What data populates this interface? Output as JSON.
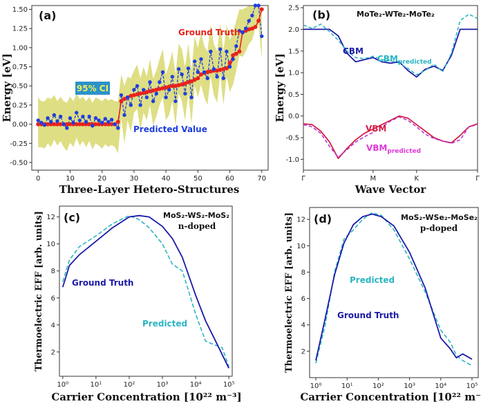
{
  "colors": {
    "truth_red": "#e8231c",
    "pred_blue": "#1f3ee0",
    "ci_band": "#dede84",
    "ci_box": "#2b93c9",
    "ci_text": "#f2ec5a",
    "dark_blue": "#1a1aa6",
    "cyan": "#2bb5c2",
    "vbm_red": "#d61f46",
    "vbm_purple": "#b53ad0",
    "magenta": "#e03ad9"
  },
  "chart_data": [
    {
      "id": "a",
      "panel_label": "(a)",
      "type": "line",
      "title": "",
      "xlabel": "Three-Layer Hetero-Structures",
      "ylabel": "Energy [eV]",
      "xlim": [
        -2,
        72
      ],
      "ylim": [
        -0.6,
        1.55
      ],
      "xticks": [
        "0",
        "10",
        "20",
        "30",
        "40",
        "50",
        "60",
        "70"
      ],
      "xtick_values": [
        0,
        10,
        20,
        30,
        40,
        50,
        60,
        70
      ],
      "yticks": [
        "-0.50",
        "-0.25",
        "0.00",
        "0.25",
        "0.50",
        "0.75",
        "1.00",
        "1.25",
        "1.50"
      ],
      "ytick_values": [
        -0.5,
        -0.25,
        0,
        0.25,
        0.5,
        0.75,
        1.0,
        1.25,
        1.5
      ],
      "annotations": {
        "ground_truth": "Ground Truth",
        "predicted": "Predicted Value",
        "ci": "95% CI"
      },
      "x": [
        0,
        1,
        2,
        3,
        4,
        5,
        6,
        7,
        8,
        9,
        10,
        11,
        12,
        13,
        14,
        15,
        16,
        17,
        18,
        19,
        20,
        21,
        22,
        23,
        24,
        25,
        26,
        27,
        28,
        29,
        30,
        31,
        32,
        33,
        34,
        35,
        36,
        37,
        38,
        39,
        40,
        41,
        42,
        43,
        44,
        45,
        46,
        47,
        48,
        49,
        50,
        51,
        52,
        53,
        54,
        55,
        56,
        57,
        58,
        59,
        60,
        61,
        62,
        63,
        64,
        65,
        66,
        67,
        68,
        69,
        70
      ],
      "series": [
        {
          "name": "Ground Truth",
          "values": [
            0,
            0,
            0,
            0,
            0,
            0,
            0,
            0,
            0,
            0,
            0,
            0,
            0,
            0,
            0,
            0,
            0,
            0,
            0,
            0,
            0,
            0,
            0,
            0,
            0,
            0.03,
            0.3,
            0.33,
            0.35,
            0.37,
            0.38,
            0.39,
            0.4,
            0.41,
            0.42,
            0.43,
            0.44,
            0.45,
            0.46,
            0.47,
            0.48,
            0.49,
            0.5,
            0.5,
            0.51,
            0.52,
            0.53,
            0.55,
            0.56,
            0.58,
            0.6,
            0.65,
            0.67,
            0.68,
            0.69,
            0.7,
            0.7,
            0.71,
            0.72,
            0.73,
            0.8,
            0.9,
            0.92,
            0.95,
            1.2,
            1.22,
            1.24,
            1.25,
            1.27,
            1.35,
            1.5
          ]
        },
        {
          "name": "Predicted Value",
          "values": [
            0.05,
            0.02,
            -0.01,
            0.08,
            0.03,
            0.12,
            0.04,
            0.1,
            0.0,
            -0.05,
            0.08,
            0.02,
            0.15,
            0.05,
            0.1,
            0.03,
            0.1,
            -0.02,
            0.08,
            0.05,
            0.02,
            0.07,
            0.03,
            0.06,
            0.0,
            -0.05,
            0.38,
            0.12,
            0.35,
            0.25,
            0.45,
            0.5,
            0.25,
            0.45,
            0.35,
            0.55,
            0.3,
            0.4,
            0.55,
            0.68,
            0.35,
            0.45,
            0.62,
            0.3,
            0.72,
            0.65,
            0.4,
            0.73,
            0.35,
            0.82,
            0.68,
            0.85,
            0.68,
            0.6,
            0.95,
            0.72,
            0.62,
            0.98,
            0.6,
            0.95,
            0.75,
            0.85,
            1.02,
            1.22,
            1.2,
            1.25,
            1.35,
            1.42,
            1.55,
            1.55,
            1.15
          ]
        },
        {
          "name": "95% CI upper",
          "values": [
            0.35,
            0.3,
            0.3,
            0.35,
            0.33,
            0.38,
            0.3,
            0.36,
            0.3,
            0.28,
            0.36,
            0.3,
            0.4,
            0.33,
            0.36,
            0.3,
            0.36,
            0.28,
            0.35,
            0.33,
            0.3,
            0.34,
            0.31,
            0.33,
            0.3,
            0.3,
            0.65,
            0.5,
            0.62,
            0.6,
            0.7,
            0.78,
            0.6,
            0.75,
            0.62,
            0.85,
            0.6,
            0.7,
            0.85,
            0.98,
            0.65,
            0.78,
            0.95,
            0.65,
            1.05,
            0.98,
            0.75,
            1.05,
            0.7,
            1.15,
            1.0,
            1.2,
            1.02,
            0.95,
            1.3,
            1.05,
            0.95,
            1.32,
            0.95,
            1.3,
            1.1,
            1.2,
            1.35,
            1.5,
            1.5,
            1.52,
            1.55,
            1.55,
            1.55,
            1.55,
            1.5
          ]
        },
        {
          "name": "95% CI lower",
          "values": [
            -0.3,
            -0.3,
            -0.32,
            -0.25,
            -0.3,
            -0.2,
            -0.28,
            -0.22,
            -0.3,
            -0.35,
            -0.24,
            -0.3,
            -0.18,
            -0.28,
            -0.22,
            -0.3,
            -0.22,
            -0.33,
            -0.25,
            -0.28,
            -0.32,
            -0.26,
            -0.3,
            -0.27,
            -0.3,
            -0.38,
            0.08,
            -0.25,
            0.05,
            -0.1,
            0.15,
            0.2,
            -0.08,
            0.15,
            0.05,
            0.25,
            -0.02,
            0.1,
            0.25,
            0.35,
            0.05,
            0.12,
            0.3,
            -0.02,
            0.4,
            0.3,
            0.05,
            0.4,
            0.0,
            0.5,
            0.35,
            0.52,
            0.35,
            0.25,
            0.62,
            0.38,
            0.28,
            0.65,
            0.25,
            0.62,
            0.42,
            0.52,
            0.7,
            0.9,
            0.88,
            0.95,
            1.05,
            1.1,
            1.25,
            1.3,
            0.85
          ]
        }
      ]
    },
    {
      "id": "b",
      "panel_label": "(b)",
      "type": "line",
      "title": "MoTe₂-WTe₂-MoTe₂",
      "xlabel": "Wave Vector",
      "ylabel": "Energy [eV]",
      "xlim": [
        0,
        10
      ],
      "ylim": [
        -1.25,
        2.55
      ],
      "xticks": [
        "Γ",
        "M",
        "K",
        "Γ"
      ],
      "xtick_values": [
        0,
        4,
        6.5,
        10
      ],
      "yticks": [
        "-1.0",
        "-0.5",
        "0.0",
        "0.5",
        "1.0",
        "1.5",
        "2.0",
        "2.5"
      ],
      "ytick_values": [
        -1.0,
        -0.5,
        0,
        0.5,
        1.0,
        1.5,
        2.0,
        2.5
      ],
      "annotations": {
        "cbm": "CBM",
        "cbm_pred_main": "CBM",
        "cbm_pred_sub": "predicted",
        "vbm": "VBM",
        "vbm_pred_main": "VBM",
        "vbm_pred_sub": "predicted"
      },
      "x": [
        0,
        0.5,
        1,
        1.5,
        2,
        2.5,
        3,
        3.5,
        4,
        4.5,
        5,
        5.5,
        6,
        6.5,
        7,
        7.5,
        8,
        8.5,
        9,
        9.5,
        10
      ],
      "series": [
        {
          "name": "CBM",
          "values": [
            2.0,
            2.0,
            2.0,
            2.0,
            1.85,
            1.45,
            1.25,
            1.3,
            1.35,
            1.25,
            1.22,
            1.25,
            1.05,
            0.9,
            1.08,
            1.15,
            1.05,
            1.4,
            2.0,
            2.0,
            2.0
          ]
        },
        {
          "name": "CBM predicted",
          "values": [
            2.1,
            2.02,
            2.12,
            1.95,
            1.75,
            1.5,
            1.35,
            1.32,
            1.38,
            1.3,
            1.28,
            1.22,
            1.1,
            0.95,
            1.05,
            1.2,
            1.02,
            1.45,
            2.2,
            2.35,
            2.25
          ]
        },
        {
          "name": "VBM",
          "values": [
            -0.18,
            -0.2,
            -0.35,
            -0.6,
            -0.98,
            -0.75,
            -0.55,
            -0.4,
            -0.3,
            -0.2,
            -0.1,
            0.0,
            -0.05,
            -0.2,
            -0.35,
            -0.5,
            -0.58,
            -0.62,
            -0.45,
            -0.25,
            -0.18
          ]
        },
        {
          "name": "VBM predicted",
          "values": [
            -0.2,
            -0.25,
            -0.4,
            -0.7,
            -0.95,
            -0.78,
            -0.6,
            -0.48,
            -0.38,
            -0.25,
            -0.12,
            -0.02,
            -0.1,
            -0.25,
            -0.42,
            -0.52,
            -0.58,
            -0.63,
            -0.55,
            -0.25,
            -0.2
          ]
        }
      ]
    },
    {
      "id": "c",
      "panel_label": "(c)",
      "type": "line",
      "title": "MoS₂-WS₂-MoS₂",
      "subtitle": "n-doped",
      "xlabel": "Carrier Concentration [10²² m⁻³]",
      "ylabel": "Thermoelectric EFF [arb. units]",
      "xscale": "log",
      "xlim_log10": [
        -0.1,
        5.1
      ],
      "ylim": [
        0.2,
        12.8
      ],
      "xticks": [
        "10⁰",
        "10¹",
        "10²",
        "10³",
        "10⁴",
        "10⁵"
      ],
      "xtick_values_log10": [
        0,
        1,
        2,
        3,
        4,
        5
      ],
      "yticks": [
        "2",
        "4",
        "6",
        "8",
        "10",
        "12"
      ],
      "ytick_values": [
        2,
        4,
        6,
        8,
        10,
        12
      ],
      "annotations": {
        "ground_truth": "Ground Truth",
        "predicted": "Predicted"
      },
      "x_log10": [
        0,
        0.2,
        0.5,
        1,
        1.5,
        2,
        2.3,
        2.6,
        3,
        3.3,
        3.6,
        4,
        4.3,
        4.6,
        4.8,
        5
      ],
      "series": [
        {
          "name": "Ground Truth",
          "values": [
            6.8,
            8.4,
            9.2,
            10.2,
            11.2,
            12.0,
            12.1,
            12.0,
            11.3,
            10.4,
            9.0,
            6.2,
            4.3,
            2.8,
            1.8,
            0.8
          ]
        },
        {
          "name": "Predicted",
          "values": [
            7.2,
            8.8,
            9.8,
            10.6,
            11.5,
            12.1,
            11.8,
            11.2,
            10.0,
            8.5,
            8.0,
            4.8,
            2.8,
            2.5,
            2.3,
            0.9
          ]
        }
      ]
    },
    {
      "id": "d",
      "panel_label": "(d)",
      "type": "line",
      "title": "MoS₂-WSe₂-MoSe₂",
      "subtitle": "p-doped",
      "xlabel": "Carrier Concentration [10²² m⁻³]",
      "ylabel": "Thermoelectric EFF [arb. units]",
      "xscale": "log",
      "xlim_log10": [
        -0.2,
        5.2
      ],
      "ylim": [
        0.0,
        12.9
      ],
      "xticks": [
        "10⁰",
        "10¹",
        "10²",
        "10³",
        "10⁴",
        "10⁵"
      ],
      "xtick_values_log10": [
        0,
        1,
        2,
        3,
        4,
        5
      ],
      "yticks": [
        "2",
        "4",
        "6",
        "8",
        "10",
        "12"
      ],
      "ytick_values": [
        2,
        4,
        6,
        8,
        10,
        12
      ],
      "annotations": {
        "ground_truth": "Ground Truth",
        "predicted": "Predicted"
      },
      "x_log10": [
        0,
        0.3,
        0.6,
        0.9,
        1.2,
        1.5,
        1.8,
        2.1,
        2.5,
        3,
        3.5,
        4,
        4.3,
        4.5,
        4.7,
        5
      ],
      "series": [
        {
          "name": "Ground Truth",
          "values": [
            1.3,
            4.5,
            7.8,
            10.2,
            11.6,
            12.2,
            12.4,
            12.2,
            11.5,
            9.5,
            6.8,
            3.0,
            2.2,
            1.5,
            1.8,
            1.4
          ]
        },
        {
          "name": "Predicted",
          "values": [
            1.1,
            4.0,
            8.0,
            10.5,
            11.2,
            12.0,
            12.5,
            12.3,
            11.2,
            9.0,
            6.5,
            3.6,
            2.7,
            1.7,
            1.3,
            0.9
          ]
        }
      ]
    }
  ]
}
